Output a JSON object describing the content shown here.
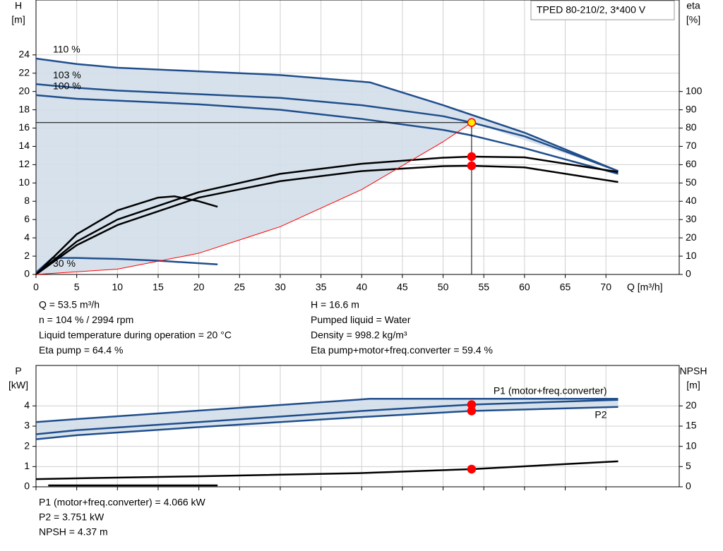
{
  "chart_data": [
    {
      "type": "line",
      "title": "TPED 80-210/2, 3*400 V",
      "ylabel": "H",
      "yunit": "[m]",
      "y2label": "eta",
      "y2unit": "[%]",
      "xlabel": "Q [m³/h]",
      "xlim": [
        0,
        79
      ],
      "xticks": [
        0,
        5,
        10,
        15,
        20,
        25,
        30,
        35,
        40,
        45,
        50,
        55,
        60,
        65,
        70
      ],
      "ylim": [
        0,
        30
      ],
      "yticks": [
        0,
        2,
        4,
        6,
        8,
        10,
        12,
        14,
        16,
        18,
        20,
        22,
        24
      ],
      "y2lim": [
        0,
        150
      ],
      "y2ticks": [
        0,
        10,
        20,
        30,
        40,
        50,
        60,
        70,
        80,
        90,
        100
      ],
      "grid": true,
      "area_fill": "#d3dee9",
      "series": [
        {
          "name": "110 %",
          "color": "#1f4e8c",
          "x": [
            0,
            5,
            10,
            20,
            30,
            41,
            50,
            60,
            71.5
          ],
          "values": [
            23.6,
            23.0,
            22.6,
            22.2,
            21.8,
            21.0,
            18.5,
            15.5,
            11.3
          ]
        },
        {
          "name": "103 %",
          "color": "#1f4e8c",
          "x": [
            0,
            5,
            10,
            20,
            30,
            40,
            50,
            53.5,
            60,
            71.5
          ],
          "values": [
            20.8,
            20.4,
            20.1,
            19.7,
            19.3,
            18.5,
            17.3,
            16.6,
            15.1,
            11.3
          ]
        },
        {
          "name": "100 %",
          "color": "#1f4e8c",
          "x": [
            0,
            5,
            10,
            20,
            30,
            40,
            50,
            53.5,
            60,
            71.5
          ],
          "values": [
            19.6,
            19.2,
            19.0,
            18.6,
            18.0,
            17.0,
            15.8,
            15.2,
            13.8,
            11.0
          ]
        },
        {
          "name": "30 %",
          "color": "#1f4e8c",
          "x": [
            0,
            2,
            5,
            10,
            15,
            22.3
          ],
          "values": [
            0.2,
            1.8,
            1.8,
            1.7,
            1.5,
            1.1
          ]
        },
        {
          "color": "#000000",
          "axis": "y2",
          "x": [
            0,
            5,
            10,
            20,
            30,
            40,
            50,
            53.5,
            60,
            71.5
          ],
          "values": [
            0,
            18,
            30,
            45,
            55,
            60.5,
            63.8,
            64.4,
            64,
            56
          ]
        },
        {
          "color": "#000000",
          "axis": "y2",
          "x": [
            0,
            5,
            10,
            20,
            30,
            40,
            50,
            53.5,
            60,
            71.5
          ],
          "values": [
            0,
            16,
            27,
            42,
            51,
            56.5,
            59.2,
            59.4,
            58.5,
            50.5
          ]
        },
        {
          "color": "#000000",
          "axis": "y2",
          "x": [
            0,
            5,
            10,
            15,
            17,
            20,
            22.3
          ],
          "values": [
            0,
            22,
            35,
            42,
            42.7,
            40,
            37
          ]
        },
        {
          "color": "#ff0000",
          "x": [
            0,
            10,
            20,
            30,
            40,
            50,
            53.5
          ],
          "values": [
            0,
            0.58,
            2.32,
            5.22,
            9.28,
            14.5,
            16.6
          ]
        }
      ],
      "points": [
        {
          "x": 53.5,
          "y": 16.6,
          "color": "#ffee00"
        },
        {
          "x": 53.5,
          "y": 64.4,
          "axis": "y2",
          "color": "#ff0000"
        },
        {
          "x": 53.5,
          "y": 59.4,
          "axis": "y2",
          "color": "#ff0000"
        }
      ],
      "info_left": [
        "Q = 53.5 m³/h",
        "n = 104 % / 2994 rpm",
        "Liquid temperature during operation = 20 °C",
        "Eta pump = 64.4 %"
      ],
      "info_right": [
        "H = 16.6 m",
        "Pumped liquid = Water",
        "Density = 998.2 kg/m³",
        "Eta pump+motor+freq.converter = 59.4 %"
      ]
    },
    {
      "type": "line",
      "ylabel": "P",
      "yunit": "[kW]",
      "y2label": "NPSH",
      "y2unit": "[m]",
      "xlim": [
        0,
        79
      ],
      "xticks": [
        0,
        5,
        10,
        15,
        20,
        25,
        30,
        35,
        40,
        45,
        50,
        55,
        60,
        65,
        70
      ],
      "ylim": [
        0,
        6
      ],
      "yticks": [
        0,
        1,
        2,
        3,
        4
      ],
      "y2lim": [
        0,
        30
      ],
      "y2ticks": [
        0,
        5,
        10,
        15,
        20
      ],
      "grid": true,
      "area_fill": "#d3dee9",
      "series": [
        {
          "color": "#1f4e8c",
          "x": [
            0,
            5,
            41,
            71.5
          ],
          "values": [
            3.2,
            3.35,
            4.35,
            4.35
          ]
        },
        {
          "name": "P1 (motor+freq.converter)",
          "color": "#1f4e8c",
          "x": [
            0,
            5,
            20,
            40,
            53.5,
            71.5
          ],
          "values": [
            2.6,
            2.8,
            3.2,
            3.75,
            4.066,
            4.3
          ]
        },
        {
          "name": "P2",
          "color": "#1f4e8c",
          "x": [
            0,
            5,
            20,
            40,
            53.5,
            71.5
          ],
          "values": [
            2.35,
            2.55,
            2.95,
            3.45,
            3.751,
            3.95
          ]
        },
        {
          "color": "#000000",
          "axis": "y2",
          "x": [
            0,
            5,
            20,
            40,
            53.5,
            71.5
          ],
          "values": [
            1.9,
            2.1,
            2.6,
            3.4,
            4.37,
            6.3
          ]
        },
        {
          "color": "#000000",
          "axis": "y2",
          "x": [
            1.5,
            22.3
          ],
          "values": [
            0.35,
            0.35
          ]
        }
      ],
      "points": [
        {
          "x": 53.5,
          "y": 4.066,
          "color": "#ff0000"
        },
        {
          "x": 53.5,
          "y": 3.751,
          "color": "#ff0000"
        },
        {
          "x": 53.5,
          "y": 4.37,
          "axis": "y2",
          "color": "#ff0000"
        }
      ],
      "info": [
        "P1 (motor+freq.converter) = 4.066 kW",
        "P2 = 3.751 kW",
        "NPSH = 4.37 m"
      ]
    }
  ]
}
